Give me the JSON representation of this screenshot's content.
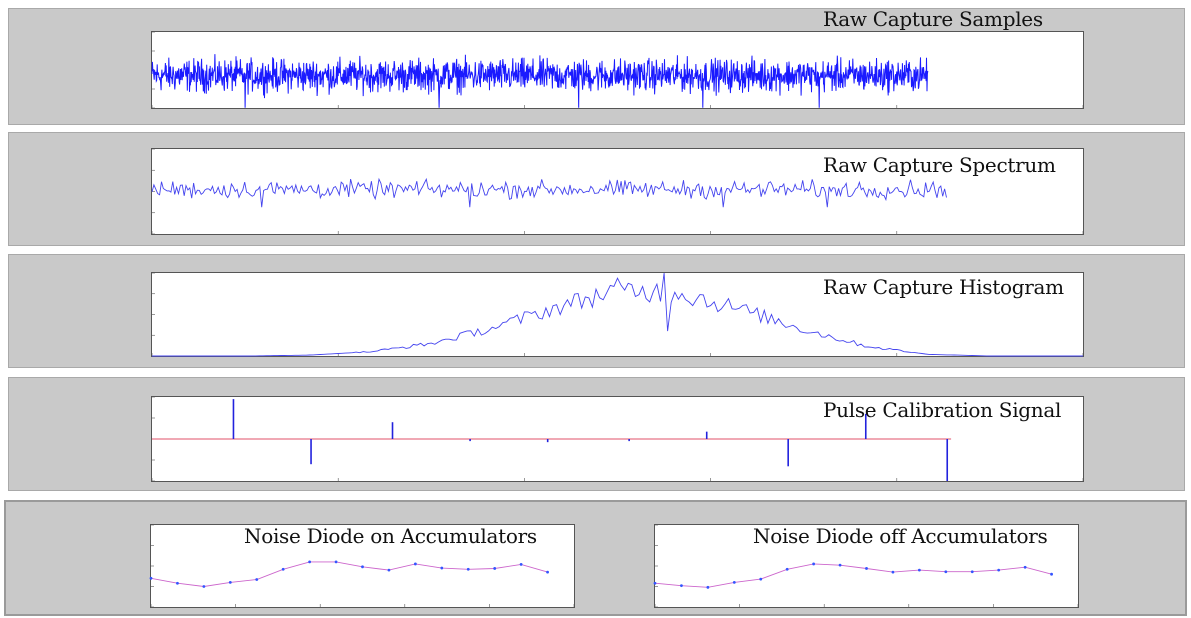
{
  "colors": {
    "panel_bg": "#c9c9c9",
    "plot_bg": "#ffffff",
    "trace_blue": "#1a1aff",
    "trace_red": "#e0506a"
  },
  "panels": {
    "samples": {
      "title": "Raw Capture Samples"
    },
    "spectrum": {
      "title": "Raw Capture Spectrum"
    },
    "histogram": {
      "title": "Raw Capture Histogram"
    },
    "pulse": {
      "title": "Pulse Calibration Signal"
    },
    "diode_on": {
      "title": "Noise Diode on Accumulators"
    },
    "diode_off": {
      "title": "Noise Diode off Accumulators"
    }
  },
  "chart_data": [
    {
      "id": "samples",
      "type": "line",
      "title": "Raw Capture Samples",
      "xlim": [
        0,
        12000
      ],
      "ylim": [
        -150,
        200
      ],
      "series": [
        {
          "color": "#1a1aff",
          "noise": true,
          "x_end": 10000,
          "center": 0,
          "amplitude": 110
        }
      ]
    },
    {
      "id": "spectrum",
      "type": "line",
      "title": "Raw Capture Spectrum",
      "xlim": [
        0,
        600
      ],
      "ylim": [
        0,
        80
      ],
      "series": [
        {
          "color": "#4444ee",
          "noise": true,
          "x_end": 512,
          "center": 42,
          "amplitude": 12
        }
      ]
    },
    {
      "id": "histogram",
      "type": "line",
      "title": "Raw Capture Histogram",
      "xlim": [
        -150,
        150
      ],
      "ylim": [
        0,
        500
      ],
      "series": [
        {
          "color": "#4444ee",
          "x": [
            -150,
            -120,
            -100,
            -80,
            -60,
            -40,
            -20,
            0,
            20,
            40,
            60,
            80,
            100,
            120,
            150
          ],
          "y": [
            0,
            0,
            5,
            25,
            75,
            170,
            290,
            400,
            380,
            280,
            160,
            60,
            10,
            0,
            0
          ]
        }
      ]
    },
    {
      "id": "pulse",
      "type": "line",
      "title": "Pulse Calibration Signal",
      "xlim": [
        0,
        1200
      ],
      "ylim": [
        -200,
        200
      ],
      "series": [
        {
          "name": "",
          "color": "#e0506a",
          "x": [
            0,
            1030
          ],
          "y": [
            0,
            0
          ]
        },
        {
          "name": "",
          "color": "#2222dd",
          "pulses": [
            [
              105,
              190
            ],
            [
              205,
              -120
            ],
            [
              310,
              80
            ],
            [
              410,
              -10
            ],
            [
              510,
              -15
            ],
            [
              615,
              -10
            ],
            [
              715,
              35
            ],
            [
              820,
              -130
            ],
            [
              920,
              120
            ],
            [
              1025,
              -200
            ]
          ]
        }
      ]
    },
    {
      "id": "diode_on",
      "type": "line",
      "title": "Noise Diode on Accumulators",
      "xlim": [
        0,
        16
      ],
      "ylim": [
        0,
        20000
      ],
      "series": [
        {
          "name": "",
          "color": "#cc66cc",
          "x": [
            0,
            1,
            2,
            3,
            4,
            5,
            6,
            7,
            8,
            9,
            10,
            11,
            12,
            13,
            14,
            15
          ],
          "y": [
            7000,
            5800,
            5000,
            6000,
            6700,
            9200,
            11000,
            11000,
            9800,
            9000,
            10500,
            9500,
            9200,
            9400,
            10400,
            8500
          ]
        }
      ]
    },
    {
      "id": "diode_off",
      "type": "line",
      "title": "Noise Diode off Accumulators",
      "xlim": [
        0,
        16
      ],
      "ylim": [
        0,
        20000
      ],
      "series": [
        {
          "name": "",
          "color": "#cc66cc",
          "x": [
            0,
            1,
            2,
            3,
            4,
            5,
            6,
            7,
            8,
            9,
            10,
            11,
            12,
            13,
            14,
            15
          ],
          "y": [
            5800,
            5200,
            4800,
            6000,
            6800,
            9200,
            10500,
            10200,
            9400,
            8500,
            9000,
            8600,
            8600,
            9000,
            9700,
            8000
          ]
        }
      ]
    }
  ]
}
